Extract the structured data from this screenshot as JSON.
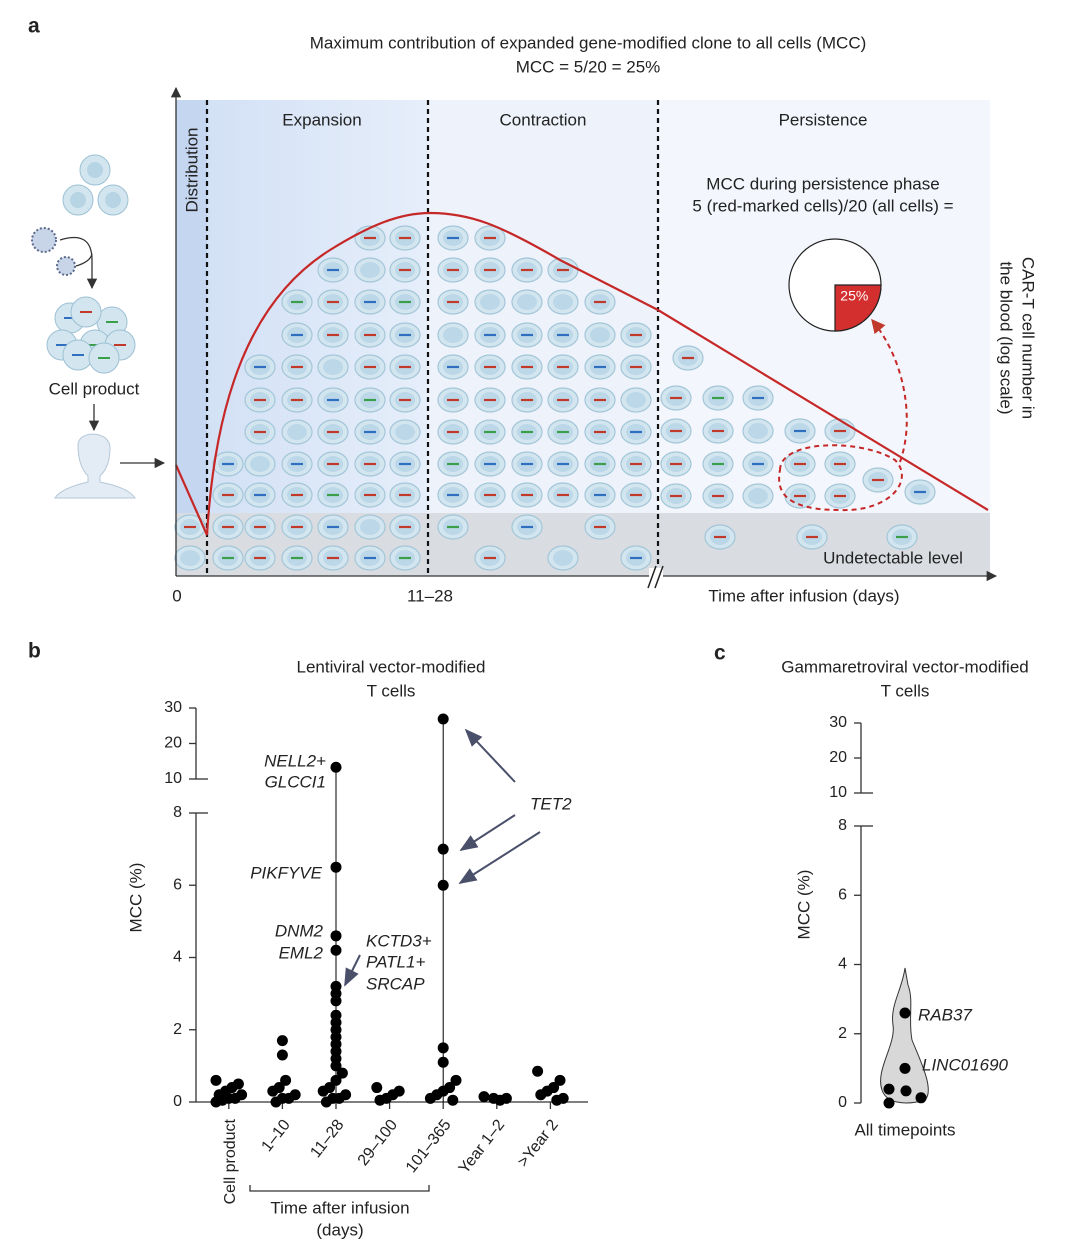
{
  "panel_a": {
    "label": "a",
    "title": [
      "Maximum contribution of expanded gene-modified clone to all cells (MCC)",
      "MCC = 5/20 = 25%"
    ],
    "phases": [
      "Distribution",
      "Expansion",
      "Contraction",
      "Persistence"
    ],
    "persistence_note": [
      "MCC during persistence phase",
      "5 (red-marked cells)/20 (all cells) ="
    ],
    "pie_value": 25,
    "pie_label": "25%",
    "cell_product": "Cell product",
    "undetectable": "Undetectable level",
    "x_ticks": [
      "0",
      "11–28"
    ],
    "x_label": "Time after infusion (days)",
    "y_label": [
      "CAR-T cell number in",
      "the blood (log scale)"
    ]
  },
  "chart_data": [
    {
      "type": "strip",
      "label": "b",
      "title": [
        "Lentiviral vector-modified",
        "T cells"
      ],
      "y_label": "MCC (%)",
      "x_label": [
        "Time after infusion",
        "(days)"
      ],
      "categories": [
        "Cell product",
        "1–10",
        "11–28",
        "29–100",
        "101–365",
        "Year 1–2",
        ">Year 2"
      ],
      "values": [
        [
          0.6,
          0.5,
          0.4,
          0.3,
          0.2,
          0.2,
          0.1,
          0.1,
          0.05,
          0
        ],
        [
          1.7,
          1.3,
          0.6,
          0.4,
          0.3,
          0.2,
          0.1,
          0.1,
          0
        ],
        [
          13.3,
          6.5,
          4.6,
          4.2,
          3.2,
          3.0,
          2.8,
          2.4,
          2.2,
          2.0,
          1.8,
          1.6,
          1.4,
          1.2,
          1.0,
          0.8,
          0.6,
          0.4,
          0.3,
          0.2,
          0.1,
          0.1,
          0
        ],
        [
          0.4,
          0.3,
          0.2,
          0.1,
          0.05
        ],
        [
          26.9,
          7.0,
          6.0,
          1.5,
          1.1,
          0.6,
          0.4,
          0.3,
          0.2,
          0.1,
          0.05
        ],
        [
          0.15,
          0.1,
          0.05,
          0.1
        ],
        [
          0.85,
          0.6,
          0.4,
          0.3,
          0.2,
          0.1,
          0.05
        ]
      ],
      "color": "#000000",
      "ylim": [
        0,
        8
      ],
      "yticks": [
        0,
        2,
        4,
        6,
        8
      ],
      "ylim_upper": [
        10,
        30
      ],
      "yticks_upper": [
        10,
        20,
        30
      ],
      "annotations": [
        "NELL2+",
        "GLCCI1",
        "PIKFYVE",
        "DNM2",
        "EML2",
        "KCTD3+",
        "PATL1+",
        "SRCAP",
        "TET2"
      ]
    },
    {
      "type": "violin",
      "label": "c",
      "title": [
        "Gammaretroviral vector-modified",
        "T cells"
      ],
      "y_label": "MCC (%)",
      "categories": [
        "All timepoints"
      ],
      "values": [
        [
          2.6,
          1.0,
          0.4,
          0.35,
          0.15,
          0
        ]
      ],
      "color": "#000000",
      "ylim": [
        0,
        8
      ],
      "yticks": [
        0,
        2,
        4,
        6,
        8
      ],
      "ylim_upper": [
        10,
        30
      ],
      "yticks_upper": [
        10,
        20,
        30
      ],
      "annotations": [
        "RAB37",
        "LINC01690"
      ]
    }
  ]
}
